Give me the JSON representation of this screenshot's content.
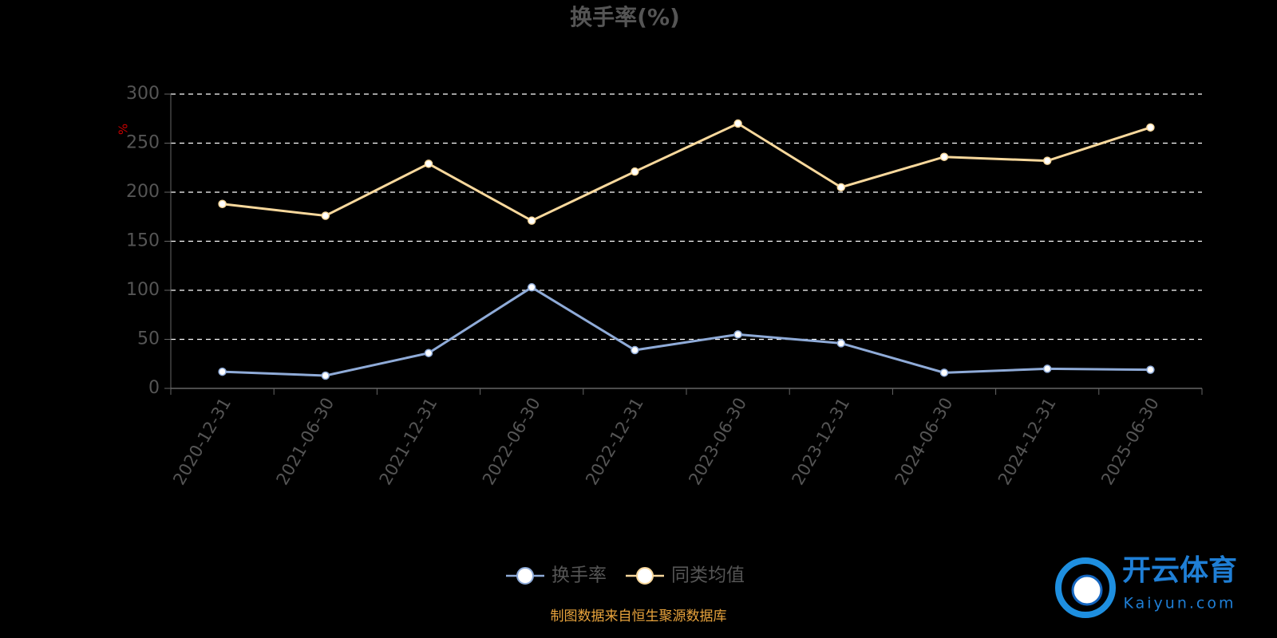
{
  "chart_data": {
    "type": "line",
    "title": "换手率(%)",
    "y_label": "%",
    "categories": [
      "2020-12-31",
      "2021-06-30",
      "2021-12-31",
      "2022-06-30",
      "2022-12-31",
      "2023-06-30",
      "2023-12-31",
      "2024-06-30",
      "2024-12-31",
      "2025-06-30"
    ],
    "series": [
      {
        "name": "换手率",
        "color": "#8fabd8",
        "values": [
          17,
          13,
          36,
          103,
          39,
          55,
          46,
          16,
          20,
          19
        ]
      },
      {
        "name": "同类均值",
        "color": "#f8d89c",
        "values": [
          188,
          176,
          229,
          171,
          221,
          270,
          205,
          236,
          232,
          266
        ]
      }
    ],
    "ylim": [
      0,
      300
    ],
    "yticks": [
      0,
      50,
      100,
      150,
      200,
      250,
      300
    ],
    "grid": true,
    "source": "制图数据来自恒生聚源数据库"
  },
  "watermark": {
    "brand": "开云体育",
    "site": "Kaiyun.com"
  }
}
